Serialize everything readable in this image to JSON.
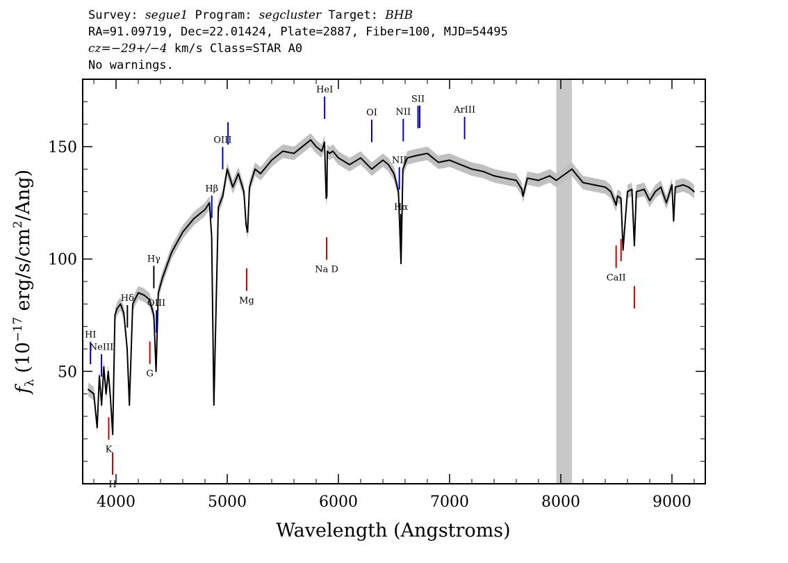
{
  "header": {
    "line1": {
      "survey_label": "Survey: ",
      "survey": "segue1",
      "program_label": " Program: ",
      "program": "segcluster",
      "target_label": " Target: ",
      "target": "BHB"
    },
    "line2": "RA=91.09719, Dec=22.01424, Plate=2887, Fiber=100, MJD=54495",
    "line3": {
      "cz": "cz=−29+/−4",
      "rest": " km/s Class=STAR A0"
    },
    "line4": "No warnings."
  },
  "chart_data": {
    "type": "line",
    "xlabel": "Wavelength (Angstroms)",
    "ylabel": "f_λ (10^-17 erg/s/cm^2/Ang)",
    "xlim": [
      3700,
      9300
    ],
    "ylim": [
      0,
      180
    ],
    "x_ticks": [
      4000,
      5000,
      6000,
      7000,
      8000,
      9000
    ],
    "y_ticks": [
      50,
      100,
      150
    ],
    "masked_region": [
      7960,
      8100
    ],
    "series": [
      {
        "color": "#000000",
        "x": [
          3750,
          3800,
          3830,
          3850,
          3870,
          3890,
          3910,
          3930,
          3950,
          3970,
          3990,
          4010,
          4040,
          4070,
          4100,
          4120,
          4150,
          4200,
          4250,
          4300,
          4340,
          4360,
          4380,
          4420,
          4500,
          4600,
          4700,
          4800,
          4840,
          4860,
          4880,
          4920,
          4960,
          5000,
          5050,
          5100,
          5150,
          5170,
          5183,
          5200,
          5250,
          5300,
          5400,
          5500,
          5600,
          5700,
          5750,
          5800,
          5850,
          5875,
          5890,
          5896,
          5900,
          5920,
          5950,
          6000,
          6100,
          6200,
          6300,
          6400,
          6450,
          6500,
          6540,
          6563,
          6580,
          6620,
          6700,
          6800,
          6900,
          7000,
          7100,
          7200,
          7300,
          7400,
          7500,
          7600,
          7650,
          7660,
          7700,
          7800,
          7900,
          7960,
          8100,
          8200,
          8300,
          8400,
          8450,
          8498,
          8510,
          8542,
          8560,
          8600,
          8640,
          8662,
          8680,
          8750,
          8800,
          8850,
          8900,
          8950,
          9000,
          9015,
          9030,
          9100,
          9150,
          9200
        ],
        "y": [
          42,
          40,
          25,
          48,
          35,
          52,
          40,
          50,
          38,
          22,
          75,
          78,
          80,
          76,
          60,
          35,
          80,
          85,
          84,
          82,
          75,
          50,
          85,
          92,
          103,
          112,
          118,
          122,
          125,
          110,
          35,
          123,
          128,
          140,
          132,
          138,
          130,
          115,
          112,
          132,
          140,
          138,
          144,
          148,
          147,
          151,
          153,
          150,
          148,
          152,
          127,
          128,
          148,
          147,
          148,
          145,
          142,
          145,
          140,
          144,
          142,
          138,
          130,
          98,
          140,
          145,
          146,
          147,
          143,
          144,
          142,
          140,
          139,
          137,
          136,
          135,
          131,
          128,
          136,
          135,
          137,
          135,
          140,
          134,
          133,
          132,
          130,
          124,
          128,
          127,
          104,
          130,
          131,
          106,
          130,
          131,
          126,
          130,
          132,
          125,
          133,
          117,
          132,
          133,
          132,
          130
        ]
      }
    ],
    "emission_lines": [
      {
        "label": "HI",
        "wavelength": 3770,
        "color": "#0000cc"
      },
      {
        "label": "NeIII",
        "wavelength": 3869,
        "color": "#0000cc"
      },
      {
        "label": "Hδ",
        "wavelength": 4102,
        "color": "#000000"
      },
      {
        "label": "Hγ",
        "wavelength": 4340,
        "color": "#000000"
      },
      {
        "label": "OIII",
        "wavelength": 4363,
        "color": "#0000cc"
      },
      {
        "label": "Hβ",
        "wavelength": 4861,
        "color": "#0000cc"
      },
      {
        "label": "OIII",
        "wavelength": 4959,
        "color": "#0000cc"
      },
      {
        "label": "",
        "wavelength": 5007,
        "color": "#0000cc"
      },
      {
        "label": "HeI",
        "wavelength": 5876,
        "color": "#0000cc"
      },
      {
        "label": "OI",
        "wavelength": 6300,
        "color": "#0000cc"
      },
      {
        "label": "NII",
        "wavelength": 6548,
        "color": "#0000cc"
      },
      {
        "label": "Hα",
        "wavelength": 6563,
        "color": "#000000"
      },
      {
        "label": "NII",
        "wavelength": 6583,
        "color": "#0000cc"
      },
      {
        "label": "SII",
        "wavelength": 6716,
        "color": "#0000cc"
      },
      {
        "label": "",
        "wavelength": 6731,
        "color": "#0000cc"
      },
      {
        "label": "ArIII",
        "wavelength": 7135,
        "color": "#0000cc"
      }
    ],
    "absorption_lines": [
      {
        "label": "K",
        "wavelength": 3934,
        "color": "#cc0000"
      },
      {
        "label": "H",
        "wavelength": 3969,
        "color": "#cc0000"
      },
      {
        "label": "G",
        "wavelength": 4304,
        "color": "#cc0000"
      },
      {
        "label": "Mg",
        "wavelength": 5175,
        "color": "#cc0000"
      },
      {
        "label": "Na D",
        "wavelength": 5894,
        "color": "#cc0000"
      },
      {
        "label": "CaII",
        "wavelength": 8498,
        "color": "#cc0000"
      },
      {
        "label": "",
        "wavelength": 8542,
        "color": "#cc0000"
      },
      {
        "label": "",
        "wavelength": 8662,
        "color": "#cc0000"
      }
    ],
    "colors": {
      "error_band": "#c0c0c0",
      "masked": "#c8c8c8"
    }
  }
}
